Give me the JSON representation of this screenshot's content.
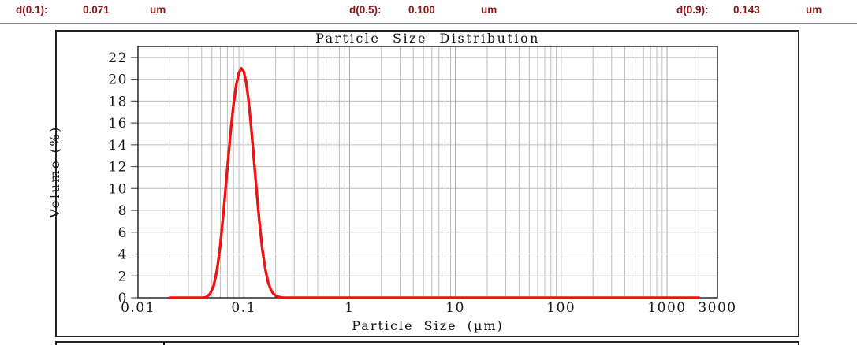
{
  "header": {
    "items": [
      {
        "label": "d(0.1):",
        "value": "0.071",
        "unit": "um"
      },
      {
        "label": "d(0.5):",
        "value": "0.100",
        "unit": "um"
      },
      {
        "label": "d(0.9):",
        "value": "0.143",
        "unit": "um"
      }
    ]
  },
  "chart_data": {
    "type": "line",
    "title": "Particle Size Distribution",
    "xlabel": "Particle Size (µm)",
    "ylabel": "Volume (%)",
    "xscale": "log",
    "xlim": [
      0.01,
      3000
    ],
    "ylim": [
      0,
      23
    ],
    "xticks": [
      0.01,
      0.1,
      1,
      10,
      100,
      1000,
      3000
    ],
    "yticks": [
      0,
      2,
      4,
      6,
      8,
      10,
      12,
      14,
      16,
      18,
      20,
      22
    ],
    "grid": true,
    "legend": "none",
    "peak": {
      "x_um": 0.095,
      "y_percent": 21
    },
    "data_range_um": [
      0.02,
      2000
    ],
    "series": [
      {
        "name": "Volume (%)",
        "color": "#ee1212",
        "points": [
          [
            0.02,
            0
          ],
          [
            0.03,
            0
          ],
          [
            0.04,
            0
          ],
          [
            0.044,
            0.05
          ],
          [
            0.048,
            0.35
          ],
          [
            0.052,
            1.1
          ],
          [
            0.056,
            2.6
          ],
          [
            0.06,
            4.8
          ],
          [
            0.065,
            8.3
          ],
          [
            0.07,
            11.9
          ],
          [
            0.075,
            15.1
          ],
          [
            0.08,
            17.7
          ],
          [
            0.085,
            19.5
          ],
          [
            0.09,
            20.6
          ],
          [
            0.095,
            21.0
          ],
          [
            0.1,
            20.7
          ],
          [
            0.105,
            19.8
          ],
          [
            0.11,
            18.4
          ],
          [
            0.115,
            16.6
          ],
          [
            0.12,
            14.6
          ],
          [
            0.13,
            10.6
          ],
          [
            0.14,
            7.1
          ],
          [
            0.15,
            4.4
          ],
          [
            0.16,
            2.6
          ],
          [
            0.17,
            1.4
          ],
          [
            0.18,
            0.75
          ],
          [
            0.19,
            0.38
          ],
          [
            0.2,
            0.18
          ],
          [
            0.22,
            0.04
          ],
          [
            0.24,
            0
          ],
          [
            0.3,
            0
          ],
          [
            0.5,
            0
          ],
          [
            1,
            0
          ],
          [
            3,
            0
          ],
          [
            10,
            0
          ],
          [
            30,
            0
          ],
          [
            100,
            0
          ],
          [
            300,
            0
          ],
          [
            1000,
            0
          ],
          [
            2000,
            0
          ]
        ]
      }
    ]
  },
  "colors": {
    "summary_text": "#8b1414",
    "curve": "#ee1212",
    "grid_minor": "#bcbcbc",
    "grid_major": "#a8a8a8",
    "frame": "#1a1a1a",
    "separator": "#858585",
    "tick_text": "#1a1a1a"
  }
}
